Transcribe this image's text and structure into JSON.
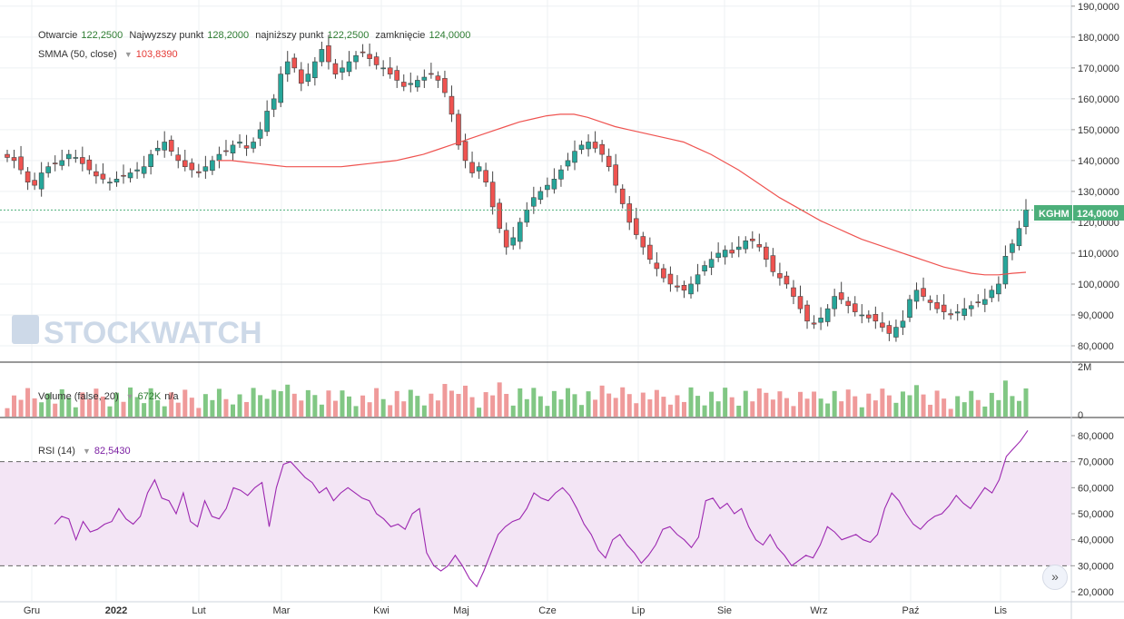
{
  "ohlc_legend": {
    "open_label": "Otwarcie",
    "open": "122,2500",
    "high_label": "Najwyzszy punkt",
    "high": "128,2000",
    "low_label": "najniższy punkt",
    "low": "122,2500",
    "close_label": "zamknięcie",
    "close": "124,0000"
  },
  "smma_legend": {
    "name": "SMMA (50, close)",
    "value": "103,8390"
  },
  "volume_legend": {
    "name": "Volume (false, 20)",
    "value": "672K",
    "extra": "n/a"
  },
  "rsi_legend": {
    "name": "RSI (14)",
    "value": "82,5430"
  },
  "symbol_tag": {
    "label": "KGHM",
    "price": "124,0000"
  },
  "watermark": "STOCKWATCH",
  "colors": {
    "up": "#26a69a",
    "down": "#ef5350",
    "smma": "#ef5350",
    "rsi": "#9c27b0",
    "rsi_band": "#f3e5f5",
    "vol_up": "#81c784",
    "vol_down": "#ef9a9a"
  },
  "chart_data": [
    {
      "type": "candlestick",
      "title": "",
      "y_ticks": [
        "190,0000",
        "180,0000",
        "170,0000",
        "160,0000",
        "150,0000",
        "140,0000",
        "130,0000",
        "120,0000",
        "110,0000",
        "100,0000",
        "90,0000",
        "80,0000"
      ],
      "ylim": [
        75,
        192
      ],
      "x_ticks": [
        "Gru",
        "2022",
        "Lut",
        "Mar",
        "Kwi",
        "Maj",
        "Cze",
        "Lip",
        "Sie",
        "Wrz",
        "Paź",
        "Lis"
      ],
      "last_price": 124.0,
      "close": [
        141,
        140,
        137,
        133,
        132,
        136,
        138,
        139,
        140,
        142,
        141,
        139,
        137,
        135,
        134,
        133,
        134,
        135,
        136,
        137,
        138,
        142,
        144,
        146,
        143,
        140,
        138,
        137,
        136,
        138,
        140,
        142,
        143,
        145,
        146,
        144,
        146,
        150,
        156,
        160,
        168,
        172,
        170,
        165,
        168,
        172,
        176,
        172,
        168,
        170,
        172,
        174,
        175,
        173,
        171,
        170,
        168,
        166,
        164,
        165,
        166,
        167,
        168,
        166,
        162,
        155,
        145,
        140,
        136,
        138,
        133,
        125,
        118,
        112,
        115,
        120,
        124,
        128,
        130,
        132,
        134,
        137,
        140,
        143,
        145,
        146,
        144,
        142,
        138,
        132,
        126,
        120,
        116,
        112,
        108,
        105,
        102,
        100,
        99,
        98,
        100,
        103,
        106,
        108,
        110,
        111,
        110,
        112,
        114,
        114,
        112,
        108,
        104,
        102,
        100,
        96,
        92,
        88,
        87,
        89,
        92,
        96,
        95,
        93,
        91,
        90,
        89,
        88,
        86,
        84,
        86,
        88,
        95,
        98,
        96,
        94,
        92,
        91,
        90,
        91,
        92,
        93,
        94,
        95,
        98,
        100,
        109,
        113,
        118,
        124
      ],
      "smma": [
        140,
        140,
        139.5,
        139,
        138.5,
        138,
        138,
        138,
        138,
        138,
        138.5,
        139,
        139.5,
        140,
        141,
        142,
        143.5,
        145,
        146.5,
        148,
        149.5,
        151,
        152.5,
        153.5,
        154.5,
        155,
        155,
        154,
        152.5,
        151,
        150,
        149,
        148,
        147,
        146,
        144,
        142,
        139.5,
        137,
        134,
        131,
        128,
        125.5,
        123,
        120.5,
        118.5,
        116.5,
        114.5,
        113,
        111.5,
        110,
        108.5,
        107,
        105.5,
        104.5,
        103.5,
        103,
        103,
        103.5,
        103.8
      ],
      "volume_axis": [
        "2M",
        "0"
      ],
      "rsi_ticks": [
        "80,0000",
        "70,0000",
        "60,0000",
        "50,0000",
        "40,0000",
        "30,0000",
        "20,0000"
      ],
      "rsi_band": [
        30,
        70
      ],
      "rsi": [
        46,
        49,
        48,
        40,
        47,
        43,
        44,
        46,
        47,
        52,
        48,
        46,
        49,
        58,
        63,
        56,
        55,
        50,
        58,
        47,
        45,
        55,
        49,
        48,
        52,
        60,
        59,
        57,
        60,
        62,
        45,
        60,
        69,
        70,
        67,
        64,
        62,
        58,
        60,
        55,
        58,
        60,
        58,
        56,
        55,
        50,
        48,
        45,
        46,
        44,
        50,
        52,
        35,
        30,
        28,
        30,
        34,
        30,
        25,
        22,
        28,
        35,
        42,
        45,
        47,
        48,
        52,
        58,
        56,
        55,
        58,
        60,
        57,
        52,
        46,
        42,
        36,
        33,
        40,
        42,
        38,
        35,
        31,
        34,
        38,
        44,
        45,
        42,
        40,
        37,
        41,
        55,
        56,
        52,
        54,
        50,
        52,
        45,
        40,
        38,
        42,
        37,
        34,
        30,
        32,
        34,
        33,
        38,
        45,
        43,
        40,
        41,
        42,
        40,
        39,
        42,
        52,
        58,
        55,
        50,
        46,
        44,
        47,
        49,
        50,
        53,
        57,
        54,
        52,
        56,
        60,
        58,
        63,
        72,
        75,
        78,
        82
      ]
    }
  ]
}
